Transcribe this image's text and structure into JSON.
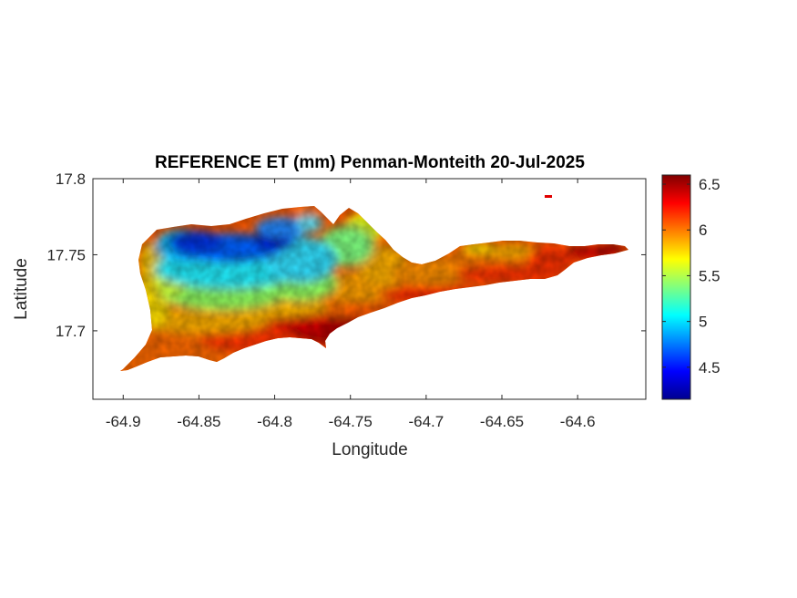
{
  "figure": {
    "title": "REFERENCE ET (mm) Penman-Monteith 20-Jul-2025",
    "xlabel": "Longitude",
    "ylabel": "Latitude"
  },
  "chart_data": {
    "type": "heatmap",
    "title": "REFERENCE ET (mm) Penman-Monteith 20-Jul-2025",
    "xlabel": "Longitude",
    "ylabel": "Latitude",
    "xlim": [
      -64.92,
      -64.555
    ],
    "ylim": [
      17.655,
      17.8
    ],
    "x_ticks": [
      -64.9,
      -64.85,
      -64.8,
      -64.75,
      -64.7,
      -64.65,
      -64.6
    ],
    "x_tick_labels": [
      "-64.9",
      "-64.85",
      "-64.8",
      "-64.75",
      "-64.7",
      "-64.65",
      "-64.6"
    ],
    "y_ticks": [
      17.7,
      17.75,
      17.8
    ],
    "y_tick_labels": [
      "17.7",
      "17.75",
      "17.8"
    ],
    "grid": false,
    "colormap": "jet",
    "colorbar": {
      "location": "right",
      "clim": [
        4.15,
        6.6
      ],
      "ticks": [
        4.5,
        5,
        5.5,
        6,
        6.5
      ],
      "tick_labels": [
        "4.5",
        "5",
        "5.5",
        "6",
        "6.5"
      ]
    },
    "field_features": [
      {
        "feature": "minimum",
        "lon": -64.8,
        "lat": 17.758,
        "value": 4.2
      },
      {
        "feature": "low area",
        "lon": -64.845,
        "lat": 17.757,
        "value": 4.5
      },
      {
        "feature": "high area",
        "lon": -64.76,
        "lat": 17.708,
        "value": 6.5
      },
      {
        "feature": "high area",
        "lon": -64.585,
        "lat": 17.752,
        "value": 6.6
      },
      {
        "feature": "typical south coast",
        "lon": -64.85,
        "lat": 17.695,
        "value": 6.1
      }
    ]
  }
}
